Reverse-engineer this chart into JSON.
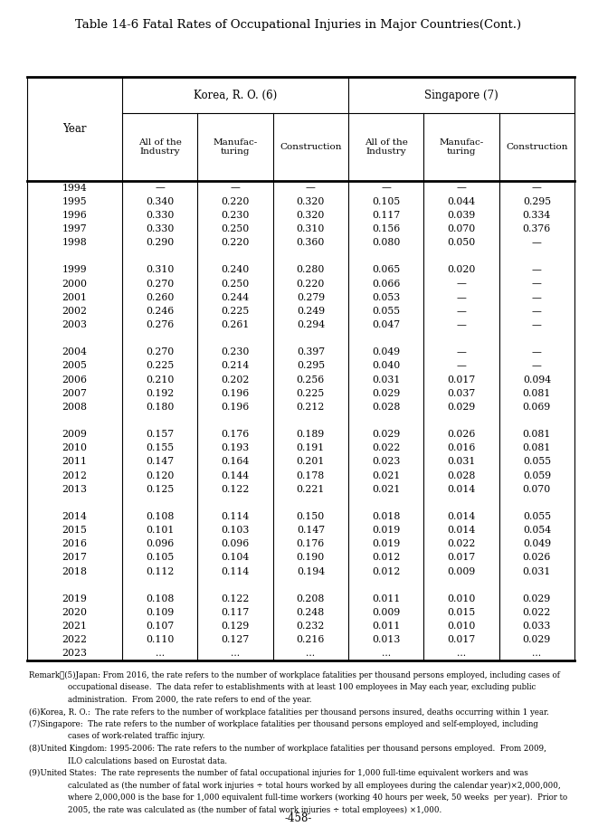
{
  "title": "Table 14-6 Fatal Rates of Occupational Injuries in Major Countries(Cont.)",
  "page_number": "-458-",
  "col1_header": "Korea, R. O. (6)",
  "col2_header": "Singapore (7)",
  "sub_headers": [
    "All of the\nIndustry",
    "Manufac-\nturing",
    "Construction",
    "All of the\nIndustry",
    "Manufac-\nturing",
    "Construction"
  ],
  "year_col_header": "Year",
  "rows": [
    [
      "1994",
      "—",
      "—",
      "—",
      "—",
      "—",
      "—"
    ],
    [
      "1995",
      "0.340",
      "0.220",
      "0.320",
      "0.105",
      "0.044",
      "0.295"
    ],
    [
      "1996",
      "0.330",
      "0.230",
      "0.320",
      "0.117",
      "0.039",
      "0.334"
    ],
    [
      "1997",
      "0.330",
      "0.250",
      "0.310",
      "0.156",
      "0.070",
      "0.376"
    ],
    [
      "1998",
      "0.290",
      "0.220",
      "0.360",
      "0.080",
      "0.050",
      "—"
    ],
    [
      "",
      "",
      "",
      "",
      "",
      "",
      ""
    ],
    [
      "1999",
      "0.310",
      "0.240",
      "0.280",
      "0.065",
      "0.020",
      "—"
    ],
    [
      "2000",
      "0.270",
      "0.250",
      "0.220",
      "0.066",
      "—",
      "—"
    ],
    [
      "2001",
      "0.260",
      "0.244",
      "0.279",
      "0.053",
      "—",
      "—"
    ],
    [
      "2002",
      "0.246",
      "0.225",
      "0.249",
      "0.055",
      "—",
      "—"
    ],
    [
      "2003",
      "0.276",
      "0.261",
      "0.294",
      "0.047",
      "—",
      "—"
    ],
    [
      "",
      "",
      "",
      "",
      "",
      "",
      ""
    ],
    [
      "2004",
      "0.270",
      "0.230",
      "0.397",
      "0.049",
      "—",
      "—"
    ],
    [
      "2005",
      "0.225",
      "0.214",
      "0.295",
      "0.040",
      "—",
      "—"
    ],
    [
      "2006",
      "0.210",
      "0.202",
      "0.256",
      "0.031",
      "0.017",
      "0.094"
    ],
    [
      "2007",
      "0.192",
      "0.196",
      "0.225",
      "0.029",
      "0.037",
      "0.081"
    ],
    [
      "2008",
      "0.180",
      "0.196",
      "0.212",
      "0.028",
      "0.029",
      "0.069"
    ],
    [
      "",
      "",
      "",
      "",
      "",
      "",
      ""
    ],
    [
      "2009",
      "0.157",
      "0.176",
      "0.189",
      "0.029",
      "0.026",
      "0.081"
    ],
    [
      "2010",
      "0.155",
      "0.193",
      "0.191",
      "0.022",
      "0.016",
      "0.081"
    ],
    [
      "2011",
      "0.147",
      "0.164",
      "0.201",
      "0.023",
      "0.031",
      "0.055"
    ],
    [
      "2012",
      "0.120",
      "0.144",
      "0.178",
      "0.021",
      "0.028",
      "0.059"
    ],
    [
      "2013",
      "0.125",
      "0.122",
      "0.221",
      "0.021",
      "0.014",
      "0.070"
    ],
    [
      "",
      "",
      "",
      "",
      "",
      "",
      ""
    ],
    [
      "2014",
      "0.108",
      "0.114",
      "0.150",
      "0.018",
      "0.014",
      "0.055"
    ],
    [
      "2015",
      "0.101",
      "0.103",
      "0.147",
      "0.019",
      "0.014",
      "0.054"
    ],
    [
      "2016",
      "0.096",
      "0.096",
      "0.176",
      "0.019",
      "0.022",
      "0.049"
    ],
    [
      "2017",
      "0.105",
      "0.104",
      "0.190",
      "0.012",
      "0.017",
      "0.026"
    ],
    [
      "2018",
      "0.112",
      "0.114",
      "0.194",
      "0.012",
      "0.009",
      "0.031"
    ],
    [
      "",
      "",
      "",
      "",
      "",
      "",
      ""
    ],
    [
      "2019",
      "0.108",
      "0.122",
      "0.208",
      "0.011",
      "0.010",
      "0.029"
    ],
    [
      "2020",
      "0.109",
      "0.117",
      "0.248",
      "0.009",
      "0.015",
      "0.022"
    ],
    [
      "2021",
      "0.107",
      "0.129",
      "0.232",
      "0.011",
      "0.010",
      "0.033"
    ],
    [
      "2022",
      "0.110",
      "0.127",
      "0.216",
      "0.013",
      "0.017",
      "0.029"
    ],
    [
      "2023",
      "...",
      "...",
      "...",
      "...",
      "...",
      "..."
    ]
  ],
  "remarks_lines": [
    [
      "Remark：",
      "(5)Japan: From 2016, the rate refers to the number of workplace fatalities per thousand persons employed, including cases of"
    ],
    [
      "",
      "occupational disease.  The data refer to establishments with at least 100 employees in May each year, excluding public"
    ],
    [
      "",
      "administration.  From 2000, the rate refers to end of the year."
    ],
    [
      "(6)",
      "Korea, R. O.:  The rate refers to the number of workplace fatalities per thousand persons insured, deaths occurring within 1 year."
    ],
    [
      "(7)",
      "Singapore:  The rate refers to the number of workplace fatalities per thousand persons employed and self-employed, including"
    ],
    [
      "",
      "cases of work-related traffic injury."
    ],
    [
      "(8)",
      "United Kingdom: 1995-2006: The rate refers to the number of workplace fatalities per thousand persons employed.  From 2009,"
    ],
    [
      "",
      "ILO calculations based on Eurostat data."
    ],
    [
      "(9)",
      "United States:  The rate represents the number of fatal occupational injuries for 1,000 full-time equivalent workers and was"
    ],
    [
      "",
      "calculated as (the number of fatal work injuries ÷ total hours worked by all employees during the calendar year)×2,000,000,"
    ],
    [
      "",
      "where 2,000,000 is the base for 1,000 equivalent full-time workers (working 40 hours per week, 50 weeks  per year).  Prior to"
    ],
    [
      "",
      "2005, the rate was calculated as (the number of fatal work injuries ÷ total employees) ×1,000."
    ]
  ]
}
